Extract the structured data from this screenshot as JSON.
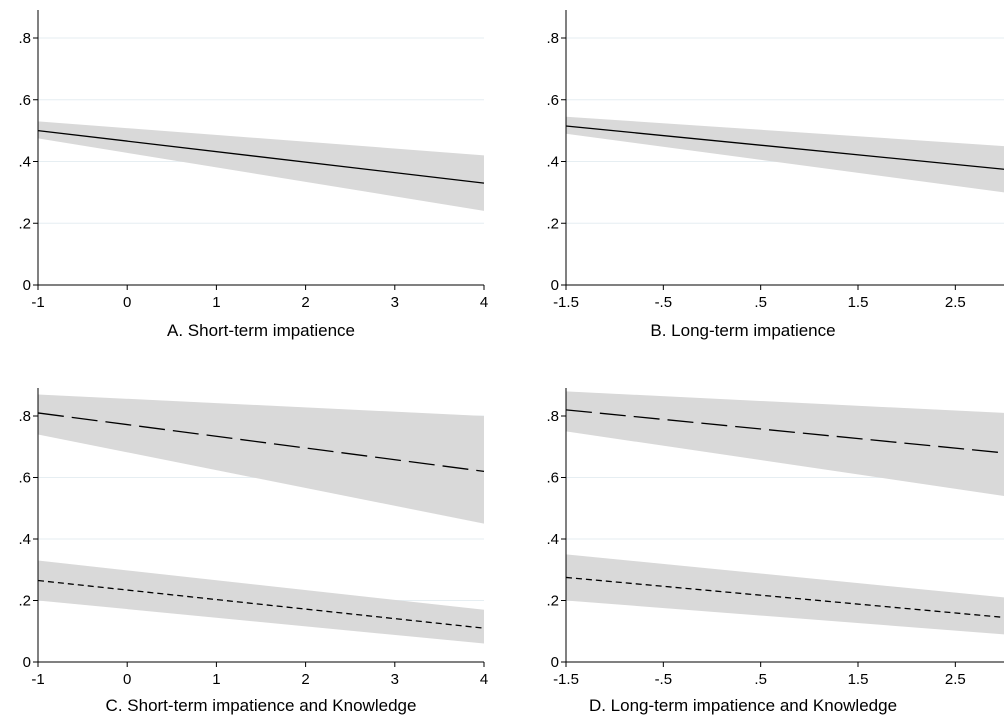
{
  "colors": {
    "background": "#ffffff",
    "gridline": "#e6eef2",
    "confidence_band": "#d9d9d9",
    "line": "#000000"
  },
  "chart_data": [
    {
      "type": "line",
      "title": "A. Short-term impatience",
      "xlim": [
        -1,
        4
      ],
      "ylim": [
        0,
        0.8
      ],
      "x_ticks": [
        -1,
        0,
        1,
        2,
        3,
        4
      ],
      "x_tick_labels": [
        "-1",
        "0",
        "1",
        "2",
        "3",
        "4"
      ],
      "y_ticks": [
        0,
        0.2,
        0.4,
        0.6,
        0.8
      ],
      "y_tick_labels": [
        "0",
        ".2",
        ".4",
        ".6",
        ".8"
      ],
      "grid": true,
      "series": [
        {
          "style": "solid",
          "x": [
            -1,
            4
          ],
          "y": [
            0.5,
            0.33
          ],
          "ci_lower": [
            0.475,
            0.24
          ],
          "ci_upper": [
            0.53,
            0.42
          ]
        }
      ]
    },
    {
      "type": "line",
      "title": "B. Long-term impatience",
      "xlim": [
        -1.5,
        3
      ],
      "ylim": [
        0,
        0.8
      ],
      "x_ticks": [
        -1.5,
        -0.5,
        0.5,
        1.5,
        2.5
      ],
      "x_tick_labels": [
        "-1.5",
        "-.5",
        ".5",
        "1.5",
        "2.5"
      ],
      "y_ticks": [
        0,
        0.2,
        0.4,
        0.6,
        0.8
      ],
      "y_tick_labels": [
        "0",
        ".2",
        ".4",
        ".6",
        ".8"
      ],
      "grid": true,
      "series": [
        {
          "style": "solid",
          "x": [
            -1.5,
            3
          ],
          "y": [
            0.515,
            0.375
          ],
          "ci_lower": [
            0.49,
            0.3
          ],
          "ci_upper": [
            0.545,
            0.45
          ]
        }
      ]
    },
    {
      "type": "line",
      "title": "C. Short-term impatience and Knowledge",
      "xlim": [
        -1,
        4
      ],
      "ylim": [
        0,
        0.8
      ],
      "x_ticks": [
        -1,
        0,
        1,
        2,
        3,
        4
      ],
      "x_tick_labels": [
        "-1",
        "0",
        "1",
        "2",
        "3",
        "4"
      ],
      "y_ticks": [
        0,
        0.2,
        0.4,
        0.6,
        0.8
      ],
      "y_tick_labels": [
        "0",
        ".2",
        ".4",
        ".6",
        ".8"
      ],
      "grid": true,
      "series": [
        {
          "style": "long-dash",
          "x": [
            -1,
            4
          ],
          "y": [
            0.81,
            0.62
          ],
          "ci_lower": [
            0.74,
            0.45
          ],
          "ci_upper": [
            0.87,
            0.8
          ]
        },
        {
          "style": "short-dash",
          "x": [
            -1,
            4
          ],
          "y": [
            0.265,
            0.11
          ],
          "ci_lower": [
            0.2,
            0.06
          ],
          "ci_upper": [
            0.33,
            0.17
          ]
        }
      ]
    },
    {
      "type": "line",
      "title": "D. Long-term impatience and Knowledge",
      "xlim": [
        -1.5,
        3
      ],
      "ylim": [
        0,
        0.8
      ],
      "x_ticks": [
        -1.5,
        -0.5,
        0.5,
        1.5,
        2.5
      ],
      "x_tick_labels": [
        "-1.5",
        "-.5",
        ".5",
        "1.5",
        "2.5"
      ],
      "y_ticks": [
        0,
        0.2,
        0.4,
        0.6,
        0.8
      ],
      "y_tick_labels": [
        "0",
        ".2",
        ".4",
        ".6",
        ".8"
      ],
      "grid": true,
      "series": [
        {
          "style": "long-dash",
          "x": [
            -1.5,
            3
          ],
          "y": [
            0.82,
            0.68
          ],
          "ci_lower": [
            0.75,
            0.54
          ],
          "ci_upper": [
            0.88,
            0.81
          ]
        },
        {
          "style": "short-dash",
          "x": [
            -1.5,
            3
          ],
          "y": [
            0.275,
            0.145
          ],
          "ci_lower": [
            0.2,
            0.09
          ],
          "ci_upper": [
            0.35,
            0.21
          ]
        }
      ]
    }
  ]
}
